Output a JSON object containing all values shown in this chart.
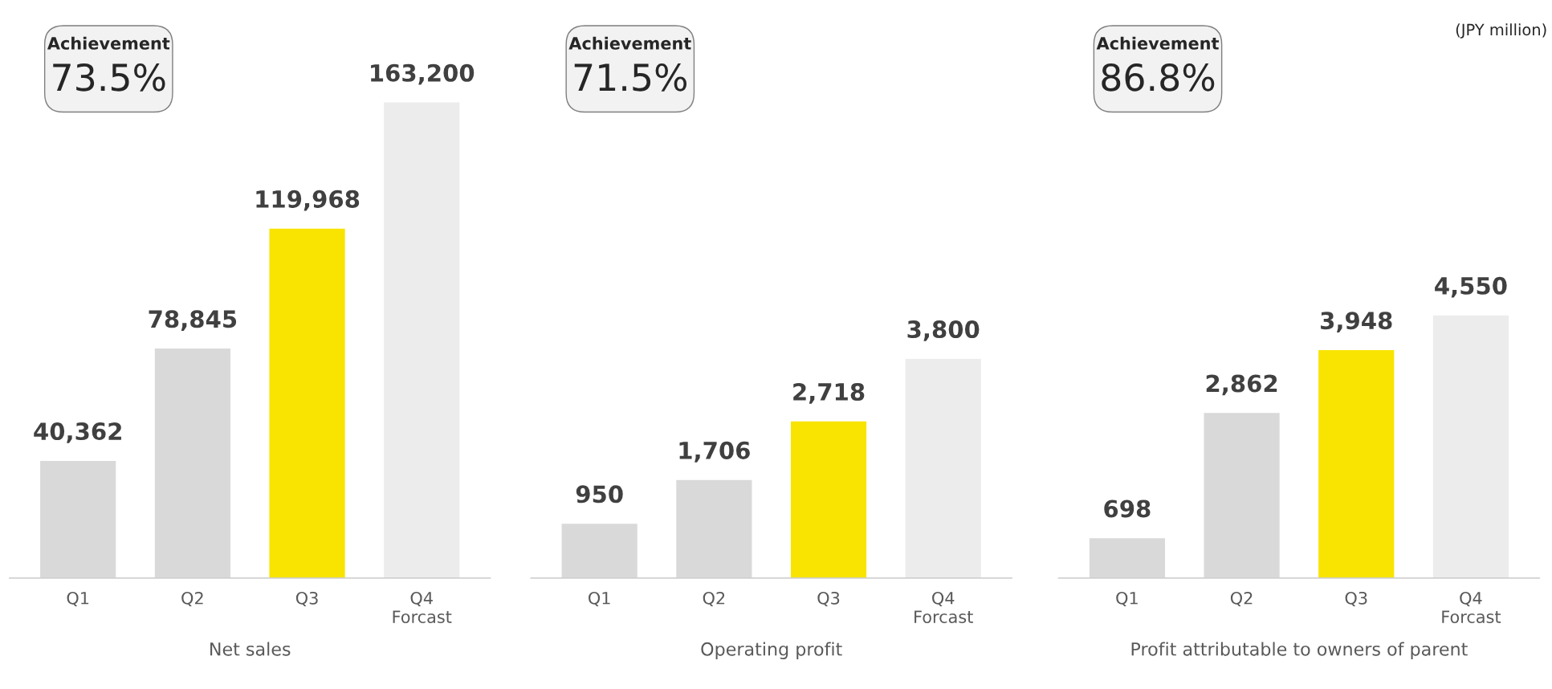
{
  "chart_data": [
    {
      "type": "bar",
      "xlabel": "Net sales",
      "categories": [
        "Q1",
        "Q2",
        "Q3",
        "Q4\nForcast"
      ],
      "values": [
        40362,
        78845,
        119968,
        163200
      ],
      "colors": [
        "#d9d9d9",
        "#d9d9d9",
        "#f8e400",
        "#ececec"
      ],
      "data_labels": true,
      "value_labels": [
        "40,362",
        "78,845",
        "119,968",
        "163,200"
      ],
      "annotations": [
        "Achievement\n73.5%"
      ]
    },
    {
      "type": "bar",
      "xlabel": "Operating profit",
      "categories": [
        "Q1",
        "Q2",
        "Q3",
        "Q4\nForcast"
      ],
      "values": [
        950,
        1706,
        2718,
        3800
      ],
      "colors": [
        "#d9d9d9",
        "#d9d9d9",
        "#f8e400",
        "#ececec"
      ],
      "data_labels": true,
      "value_labels": [
        "950",
        "1,706",
        "2,718",
        "3,800"
      ],
      "annotations": [
        "Achievement\n71.5%"
      ]
    },
    {
      "type": "bar",
      "xlabel": "Profit attributable to owners of parent",
      "categories": [
        "Q1",
        "Q2",
        "Q3",
        "Q4\nForcast"
      ],
      "values": [
        698,
        2862,
        3948,
        4550
      ],
      "colors": [
        "#d9d9d9",
        "#d9d9d9",
        "#f8e400",
        "#ececec"
      ],
      "data_labels": true,
      "value_labels": [
        "698",
        "2,862",
        "3,948",
        "4,550"
      ],
      "annotations": [
        "Achievement\n86.8%",
        "(JPY million)"
      ]
    }
  ]
}
